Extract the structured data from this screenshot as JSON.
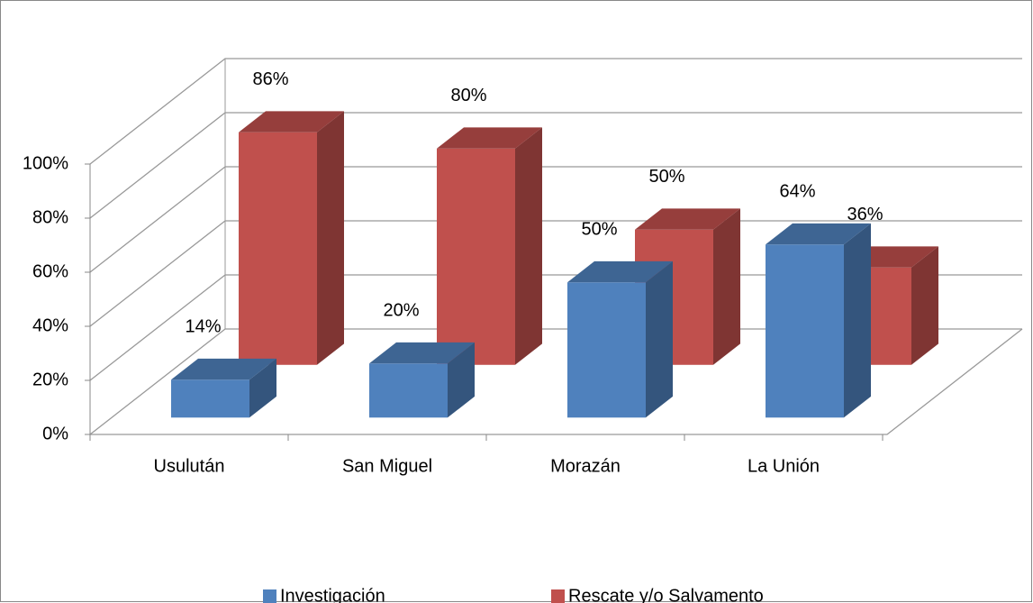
{
  "chart_data": {
    "type": "bar3d",
    "categories": [
      "Usulután",
      "San Miguel",
      "Morazán",
      "La Unión"
    ],
    "series": [
      {
        "name": "Investigación",
        "color": "#4f81bd",
        "values": [
          14,
          20,
          50,
          64
        ],
        "value_labels": [
          "14%",
          "20%",
          "50%",
          "64%"
        ]
      },
      {
        "name": "Rescate y/o Salvamento",
        "color": "#c0504d",
        "values": [
          86,
          80,
          50,
          36
        ],
        "value_labels": [
          "86%",
          "80%",
          "50%",
          "36%"
        ]
      }
    ],
    "ylim": [
      0,
      100
    ],
    "yticks": [
      {
        "value": 0,
        "label": "0%"
      },
      {
        "value": 20,
        "label": "20%"
      },
      {
        "value": 40,
        "label": "40%"
      },
      {
        "value": 60,
        "label": "60%"
      },
      {
        "value": 80,
        "label": "80%"
      },
      {
        "value": 100,
        "label": "100%"
      }
    ],
    "grid": true,
    "legend": "bottom"
  }
}
